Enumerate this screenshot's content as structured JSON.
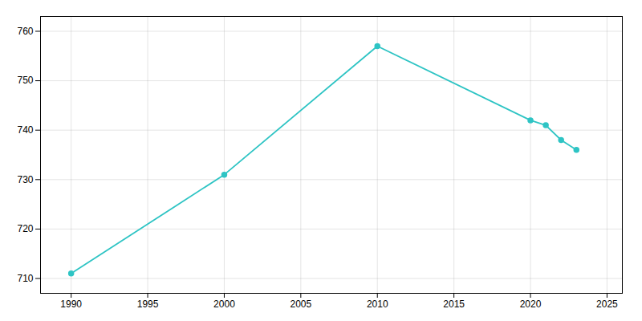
{
  "chart_data": {
    "type": "line",
    "x": [
      1990,
      2000,
      2010,
      2020,
      2021,
      2022,
      2023
    ],
    "values": [
      711,
      731,
      757,
      742,
      741,
      738,
      736
    ],
    "color": "#2ec4c4",
    "marker": "circle",
    "xlim": [
      1988,
      2026
    ],
    "ylim": [
      707,
      763
    ],
    "xticks": [
      1990,
      1995,
      2000,
      2005,
      2010,
      2015,
      2020,
      2025
    ],
    "yticks": [
      710,
      720,
      730,
      740,
      750,
      760
    ],
    "grid": true
  }
}
